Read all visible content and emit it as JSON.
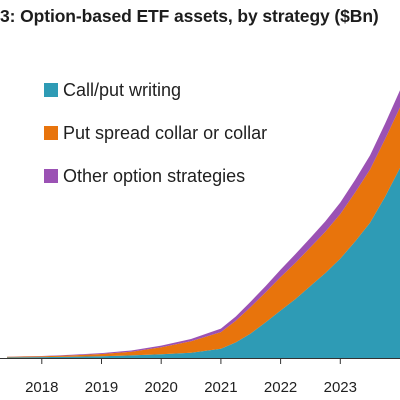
{
  "title": "3: Option-based ETF assets, by strategy ($Bn)",
  "chart_data": {
    "type": "area",
    "stacked": true,
    "title": "3: Option-based ETF assets, by strategy ($Bn)",
    "xlabel": "",
    "ylabel": "",
    "x_ticks": [
      "2018",
      "2019",
      "2020",
      "2021",
      "2022",
      "2023"
    ],
    "x": [
      "2017-06",
      "2018-01",
      "2018-07",
      "2019-01",
      "2019-07",
      "2020-01",
      "2020-07",
      "2021-01",
      "2021-04",
      "2021-07",
      "2021-10",
      "2022-01",
      "2022-04",
      "2022-07",
      "2022-10",
      "2023-01",
      "2023-04",
      "2023-07",
      "2023-10",
      "2024-01"
    ],
    "legend_position": "top-left",
    "grid": false,
    "series": [
      {
        "name": "Call/put writing",
        "color": "#2e9bb5",
        "values": [
          0.2,
          0.3,
          0.4,
          0.6,
          0.9,
          1.3,
          1.8,
          3.2,
          5.4,
          8.5,
          12.4,
          16.5,
          20.5,
          25.0,
          29.5,
          34.5,
          40.5,
          47.0,
          56.0,
          66.0
        ]
      },
      {
        "name": "Put spread collar or collar",
        "color": "#e8740c",
        "values": [
          0.2,
          0.3,
          0.5,
          0.8,
          1.3,
          2.4,
          4.0,
          5.8,
          7.5,
          9.2,
          10.4,
          11.6,
          12.6,
          13.4,
          14.4,
          15.5,
          17.0,
          18.5,
          20.0,
          21.0
        ]
      },
      {
        "name": "Other option strategies",
        "color": "#9b52b4",
        "values": [
          0.1,
          0.1,
          0.2,
          0.3,
          0.4,
          0.6,
          0.8,
          1.2,
          1.5,
          1.9,
          2.2,
          2.6,
          3.0,
          3.3,
          3.6,
          4.0,
          4.4,
          4.9,
          5.4,
          6.0
        ]
      }
    ]
  }
}
